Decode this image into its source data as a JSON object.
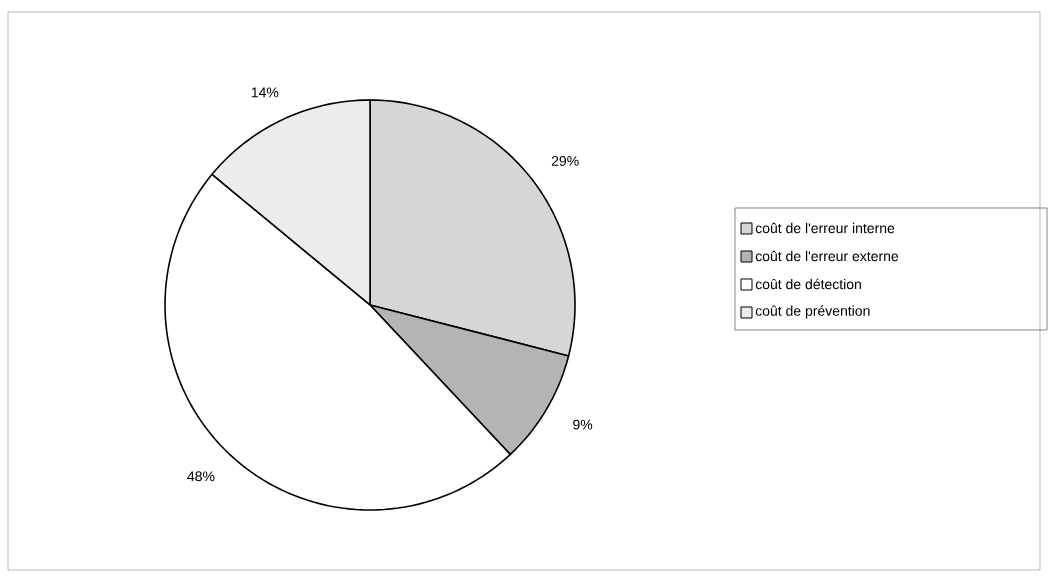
{
  "chart_data": {
    "type": "pie",
    "categories": [
      "coût de l'erreur interne",
      "coût de l'erreur externe",
      "coût de détection",
      "coût de prévention"
    ],
    "values": [
      29,
      9,
      48,
      14
    ],
    "value_labels": [
      "29%",
      "9%",
      "48%",
      "14%"
    ],
    "colors": [
      "#d6d6d6",
      "#b4b4b4",
      "#ffffff",
      "#ececec"
    ],
    "legend": "right"
  }
}
